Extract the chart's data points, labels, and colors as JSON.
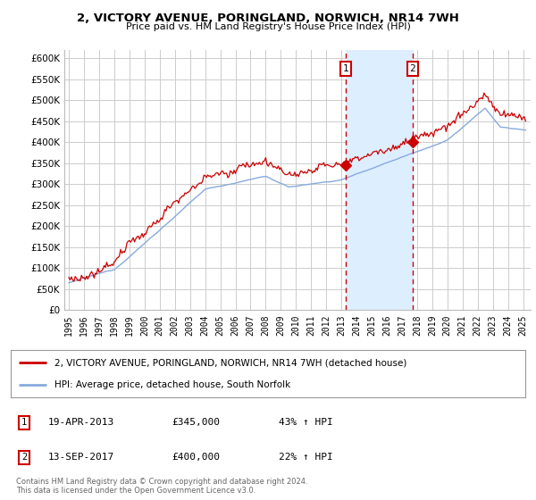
{
  "title": "2, VICTORY AVENUE, PORINGLAND, NORWICH, NR14 7WH",
  "subtitle": "Price paid vs. HM Land Registry's House Price Index (HPI)",
  "ylim": [
    0,
    620000
  ],
  "yticks": [
    0,
    50000,
    100000,
    150000,
    200000,
    250000,
    300000,
    350000,
    400000,
    450000,
    500000,
    550000,
    600000
  ],
  "ytick_labels": [
    "£0",
    "£50K",
    "£100K",
    "£150K",
    "£200K",
    "£250K",
    "£300K",
    "£350K",
    "£400K",
    "£450K",
    "£500K",
    "£550K",
    "£600K"
  ],
  "sale1_year": 2013.3,
  "sale1_price": 345000,
  "sale1_label": "19-APR-2013",
  "sale1_pct": "43% ↑ HPI",
  "sale2_year": 2017.7,
  "sale2_price": 400000,
  "sale2_label": "13-SEP-2017",
  "sale2_pct": "22% ↑ HPI",
  "red_line_color": "#cc0000",
  "blue_line_color": "#88aadd",
  "shade_color": "#ddeeff",
  "legend_line1": "2, VICTORY AVENUE, PORINGLAND, NORWICH, NR14 7WH (detached house)",
  "legend_line2": "HPI: Average price, detached house, South Norfolk",
  "footer1": "Contains HM Land Registry data © Crown copyright and database right 2024.",
  "footer2": "This data is licensed under the Open Government Licence v3.0.",
  "background_color": "#ffffff",
  "grid_color": "#cccccc"
}
